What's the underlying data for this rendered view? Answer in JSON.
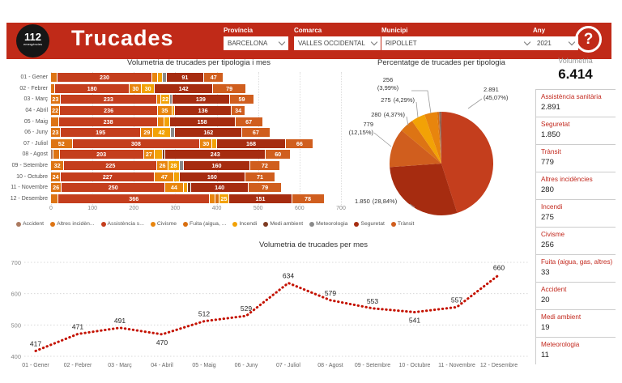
{
  "header": {
    "logo": {
      "number": "112",
      "subtext": "emergències"
    },
    "title": "Trucades",
    "filters": [
      {
        "id": "provincia",
        "label": "Província",
        "value": "BARCELONA"
      },
      {
        "id": "comarca",
        "label": "Comarca",
        "value": "VALLES OCCIDENTAL"
      },
      {
        "id": "municipi",
        "label": "Municipi",
        "value": "RIPOLLET"
      },
      {
        "id": "any",
        "label": "Any",
        "value": "2021"
      }
    ],
    "help_label": "?"
  },
  "palette": {
    "Accident": "#ab7a60",
    "Altres incidències": "#dd7414",
    "Assistència sanitària": "#c43e1d",
    "Civisme": "#e8850d",
    "Fuita (aigua, gas, altres)": "#d96f10",
    "Incendi": "#f2a206",
    "Medi ambient": "#7e3b22",
    "Meteorologia": "#8a8a8a",
    "Seguretat": "#a62c10",
    "Trànsit": "#d05e1e"
  },
  "volumetria_panel": {
    "title": "Volumetria",
    "total": "6.414",
    "items": [
      {
        "label": "Assistència sanitària",
        "value": "2.891"
      },
      {
        "label": "Seguretat",
        "value": "1.850"
      },
      {
        "label": "Trànsit",
        "value": "779"
      },
      {
        "label": "Altres incidències",
        "value": "280"
      },
      {
        "label": "Incendi",
        "value": "275"
      },
      {
        "label": "Civisme",
        "value": "256"
      },
      {
        "label": "Fuita (aigua, gas, altres)",
        "value": "33"
      },
      {
        "label": "Accident",
        "value": "20"
      },
      {
        "label": "Medi ambient",
        "value": "19"
      },
      {
        "label": "Meteorologia",
        "value": "11"
      }
    ]
  },
  "chart_data": [
    {
      "type": "bar",
      "title": "Volumetria de trucades per tipologia i mes",
      "orientation": "horizontal_stacked",
      "xlim": [
        0,
        700
      ],
      "x_ticks": [
        0,
        100,
        200,
        300,
        400,
        500,
        600,
        700
      ],
      "legend": [
        {
          "label": "Accident",
          "key": "Accident"
        },
        {
          "label": "Altres incidèn...",
          "key": "Altres incidències"
        },
        {
          "label": "Assistència s...",
          "key": "Assistència sanitària"
        },
        {
          "label": "Civisme",
          "key": "Civisme"
        },
        {
          "label": "Fuita (aigua, ...",
          "key": "Fuita (aigua, gas, altres)"
        },
        {
          "label": "Incendi",
          "key": "Incendi"
        },
        {
          "label": "Medi ambient",
          "key": "Medi ambient"
        },
        {
          "label": "Meteorologia",
          "key": "Meteorologia"
        },
        {
          "label": "Seguretat",
          "key": "Seguretat"
        },
        {
          "label": "Trànsit",
          "key": "Trànsit"
        }
      ],
      "rows": [
        {
          "month": "01 - Gener",
          "segments": [
            {
              "c": "Altres incidències",
              "v": 15,
              "l": false
            },
            {
              "c": "Assistència sanitària",
              "v": 230,
              "l": true
            },
            {
              "c": "Civisme",
              "v": 14,
              "l": false
            },
            {
              "c": "Incendi",
              "v": 10,
              "l": false
            },
            {
              "c": "Meteorologia",
              "v": 10,
              "l": false
            },
            {
              "c": "Seguretat",
              "v": 91,
              "l": true
            },
            {
              "c": "Trànsit",
              "v": 47,
              "l": true
            }
          ]
        },
        {
          "month": "02 - Febrer",
          "segments": [
            {
              "c": "Altres incidències",
              "v": 10,
              "l": false
            },
            {
              "c": "Assistència sanitària",
              "v": 180,
              "l": true
            },
            {
              "c": "Civisme",
              "v": 30,
              "l": true
            },
            {
              "c": "Incendi",
              "v": 30,
              "l": true
            },
            {
              "c": "Seguretat",
              "v": 142,
              "l": true
            },
            {
              "c": "Trànsit",
              "v": 79,
              "l": true
            }
          ]
        },
        {
          "month": "03 - Març",
          "segments": [
            {
              "c": "Altres incidències",
              "v": 23,
              "l": true
            },
            {
              "c": "Assistència sanitària",
              "v": 233,
              "l": true
            },
            {
              "c": "Civisme",
              "v": 10,
              "l": false
            },
            {
              "c": "Incendi",
              "v": 22,
              "l": true
            },
            {
              "c": "Meteorologia",
              "v": 5,
              "l": false
            },
            {
              "c": "Seguretat",
              "v": 139,
              "l": true
            },
            {
              "c": "Trànsit",
              "v": 59,
              "l": true
            }
          ]
        },
        {
          "month": "04 - Abril",
          "segments": [
            {
              "c": "Altres incidències",
              "v": 22,
              "l": true
            },
            {
              "c": "Assistència sanitària",
              "v": 236,
              "l": true
            },
            {
              "c": "Civisme",
              "v": 35,
              "l": true
            },
            {
              "c": "Incendi",
              "v": 7,
              "l": false
            },
            {
              "c": "Seguretat",
              "v": 136,
              "l": true
            },
            {
              "c": "Trànsit",
              "v": 34,
              "l": true
            }
          ]
        },
        {
          "month": "05 - Maig",
          "segments": [
            {
              "c": "Altres incidències",
              "v": 20,
              "l": false
            },
            {
              "c": "Assistència sanitària",
              "v": 238,
              "l": true
            },
            {
              "c": "Civisme",
              "v": 15,
              "l": false
            },
            {
              "c": "Incendi",
              "v": 14,
              "l": false
            },
            {
              "c": "Seguretat",
              "v": 158,
              "l": true
            },
            {
              "c": "Trànsit",
              "v": 67,
              "l": true
            }
          ]
        },
        {
          "month": "06 - Juny",
          "segments": [
            {
              "c": "Altres incidències",
              "v": 23,
              "l": true
            },
            {
              "c": "Assistència sanitària",
              "v": 195,
              "l": true
            },
            {
              "c": "Civisme",
              "v": 29,
              "l": true
            },
            {
              "c": "Incendi",
              "v": 42,
              "l": true
            },
            {
              "c": "Meteorologia",
              "v": 11,
              "l": false
            },
            {
              "c": "Seguretat",
              "v": 162,
              "l": true
            },
            {
              "c": "Trànsit",
              "v": 67,
              "l": true
            }
          ]
        },
        {
          "month": "07 - Juliol",
          "segments": [
            {
              "c": "Altres incidències",
              "v": 52,
              "l": true
            },
            {
              "c": "Assistència sanitària",
              "v": 308,
              "l": true
            },
            {
              "c": "Civisme",
              "v": 30,
              "l": true
            },
            {
              "c": "Incendi",
              "v": 10,
              "l": false
            },
            {
              "c": "Seguretat",
              "v": 168,
              "l": true
            },
            {
              "c": "Trànsit",
              "v": 66,
              "l": true
            }
          ]
        },
        {
          "month": "08 - Agost",
          "segments": [
            {
              "c": "Accident",
              "v": 6,
              "l": false
            },
            {
              "c": "Altres incidències",
              "v": 15,
              "l": false
            },
            {
              "c": "Assistència sanitària",
              "v": 203,
              "l": true
            },
            {
              "c": "Civisme",
              "v": 27,
              "l": true
            },
            {
              "c": "Incendi",
              "v": 19,
              "l": false
            },
            {
              "c": "Medi ambient",
              "v": 6,
              "l": false
            },
            {
              "c": "Seguretat",
              "v": 243,
              "l": true
            },
            {
              "c": "Trànsit",
              "v": 60,
              "l": true
            }
          ]
        },
        {
          "month": "09 - Setembre",
          "segments": [
            {
              "c": "Altres incidències",
              "v": 32,
              "l": true
            },
            {
              "c": "Assistència sanitària",
              "v": 225,
              "l": true
            },
            {
              "c": "Civisme",
              "v": 26,
              "l": true
            },
            {
              "c": "Incendi",
              "v": 28,
              "l": true
            },
            {
              "c": "Meteorologia",
              "v": 10,
              "l": false
            },
            {
              "c": "Seguretat",
              "v": 160,
              "l": true
            },
            {
              "c": "Trànsit",
              "v": 72,
              "l": true
            }
          ]
        },
        {
          "month": "10 - Octubre",
          "segments": [
            {
              "c": "Altres incidències",
              "v": 24,
              "l": true
            },
            {
              "c": "Assistència sanitària",
              "v": 227,
              "l": true
            },
            {
              "c": "Civisme",
              "v": 47,
              "l": true
            },
            {
              "c": "Incendi",
              "v": 12,
              "l": false
            },
            {
              "c": "Seguretat",
              "v": 160,
              "l": true
            },
            {
              "c": "Trànsit",
              "v": 71,
              "l": true
            }
          ]
        },
        {
          "month": "11 - Novembre",
          "segments": [
            {
              "c": "Altres incidències",
              "v": 26,
              "l": true
            },
            {
              "c": "Assistència sanitària",
              "v": 250,
              "l": true
            },
            {
              "c": "Civisme",
              "v": 44,
              "l": true
            },
            {
              "c": "Incendi",
              "v": 10,
              "l": false
            },
            {
              "c": "Medi ambient",
              "v": 8,
              "l": false
            },
            {
              "c": "Seguretat",
              "v": 140,
              "l": true
            },
            {
              "c": "Trànsit",
              "v": 79,
              "l": true
            }
          ]
        },
        {
          "month": "12 - Desembre",
          "segments": [
            {
              "c": "Altres incidències",
              "v": 18,
              "l": false
            },
            {
              "c": "Assistència sanitària",
              "v": 366,
              "l": true
            },
            {
              "c": "Civisme",
              "v": 12,
              "l": false
            },
            {
              "c": "Fuita (aigua, gas, altres)",
              "v": 10,
              "l": false
            },
            {
              "c": "Incendi",
              "v": 25,
              "l": true
            },
            {
              "c": "Seguretat",
              "v": 151,
              "l": true
            },
            {
              "c": "Trànsit",
              "v": 78,
              "l": true
            }
          ]
        }
      ]
    },
    {
      "type": "pie",
      "title": "Percentatge de trucades per tipologia",
      "slices": [
        {
          "name": "Assistència sanitària",
          "value": 2891,
          "pct": "45,07%",
          "value_str": "2.891",
          "pct_str": "(45,07%)"
        },
        {
          "name": "Seguretat",
          "value": 1850,
          "pct": "28,84%",
          "value_str": "1.850",
          "pct_str": "(28,84%)"
        },
        {
          "name": "Trànsit",
          "value": 779,
          "pct": "12,15%",
          "value_str": "779",
          "pct_str": "(12,15%)"
        },
        {
          "name": "Altres incidències",
          "value": 280,
          "pct": "4,37%",
          "value_str": "280",
          "pct_str": "(4,37%)"
        },
        {
          "name": "Incendi",
          "value": 275,
          "pct": "4,29%",
          "value_str": "275",
          "pct_str": "(4,29%)"
        },
        {
          "name": "Civisme",
          "value": 256,
          "pct": "3,99%",
          "value_str": "256",
          "pct_str": "(3,99%)"
        },
        {
          "name": "Fuita (aigua, gas, altres)",
          "value": 33
        },
        {
          "name": "Accident",
          "value": 20
        },
        {
          "name": "Medi ambient",
          "value": 19
        },
        {
          "name": "Meteorologia",
          "value": 11
        }
      ]
    },
    {
      "type": "line",
      "title": "Volumetria de trucades per mes",
      "x": [
        "01 - Gener",
        "02 - Febrer",
        "03 - Març",
        "04 - Abril",
        "05 - Maig",
        "06 - Juny",
        "07 - Juliol",
        "08 - Agost",
        "09 - Setembre",
        "10 - Octubre",
        "11 - Novembre",
        "12 - Desembre"
      ],
      "values": [
        417,
        471,
        491,
        470,
        512,
        529,
        634,
        579,
        553,
        541,
        557,
        660
      ],
      "ylim": [
        400,
        700
      ],
      "y_ticks": [
        400,
        500,
        600,
        700
      ],
      "line_color": "#c41200",
      "style": "dotted"
    }
  ]
}
